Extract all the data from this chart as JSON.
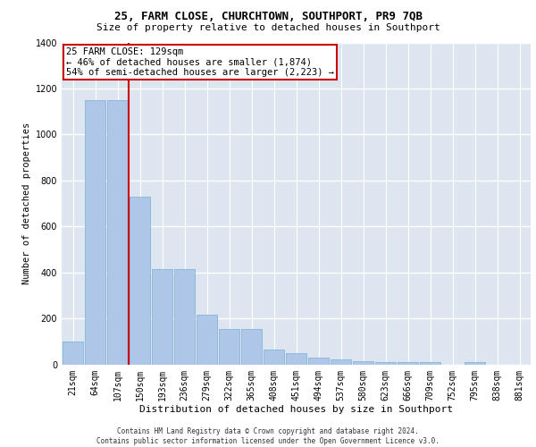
{
  "title1": "25, FARM CLOSE, CHURCHTOWN, SOUTHPORT, PR9 7QB",
  "title2": "Size of property relative to detached houses in Southport",
  "xlabel": "Distribution of detached houses by size in Southport",
  "ylabel": "Number of detached properties",
  "footnote": "Contains HM Land Registry data © Crown copyright and database right 2024.\nContains public sector information licensed under the Open Government Licence v3.0.",
  "categories": [
    "21sqm",
    "64sqm",
    "107sqm",
    "150sqm",
    "193sqm",
    "236sqm",
    "279sqm",
    "322sqm",
    "365sqm",
    "408sqm",
    "451sqm",
    "494sqm",
    "537sqm",
    "580sqm",
    "623sqm",
    "666sqm",
    "709sqm",
    "752sqm",
    "795sqm",
    "838sqm",
    "881sqm"
  ],
  "values": [
    100,
    1150,
    1150,
    730,
    415,
    415,
    215,
    155,
    155,
    65,
    50,
    30,
    20,
    15,
    10,
    10,
    10,
    0,
    10,
    0,
    0
  ],
  "bar_color": "#aec6e8",
  "bar_edge_color": "#7aafd4",
  "background_color": "#dde5f0",
  "grid_color": "#ffffff",
  "annotation_box_text": "25 FARM CLOSE: 129sqm\n← 46% of detached houses are smaller (1,874)\n54% of semi-detached houses are larger (2,223) →",
  "annotation_box_color": "#ffffff",
  "annotation_box_edge_color": "#cc0000",
  "ylim": [
    0,
    1400
  ],
  "yticks": [
    0,
    200,
    400,
    600,
    800,
    1000,
    1200,
    1400
  ],
  "title1_fontsize": 9.0,
  "title2_fontsize": 8.0,
  "ylabel_fontsize": 7.5,
  "xlabel_fontsize": 8.0,
  "tick_fontsize": 7.0,
  "annot_fontsize": 7.5
}
